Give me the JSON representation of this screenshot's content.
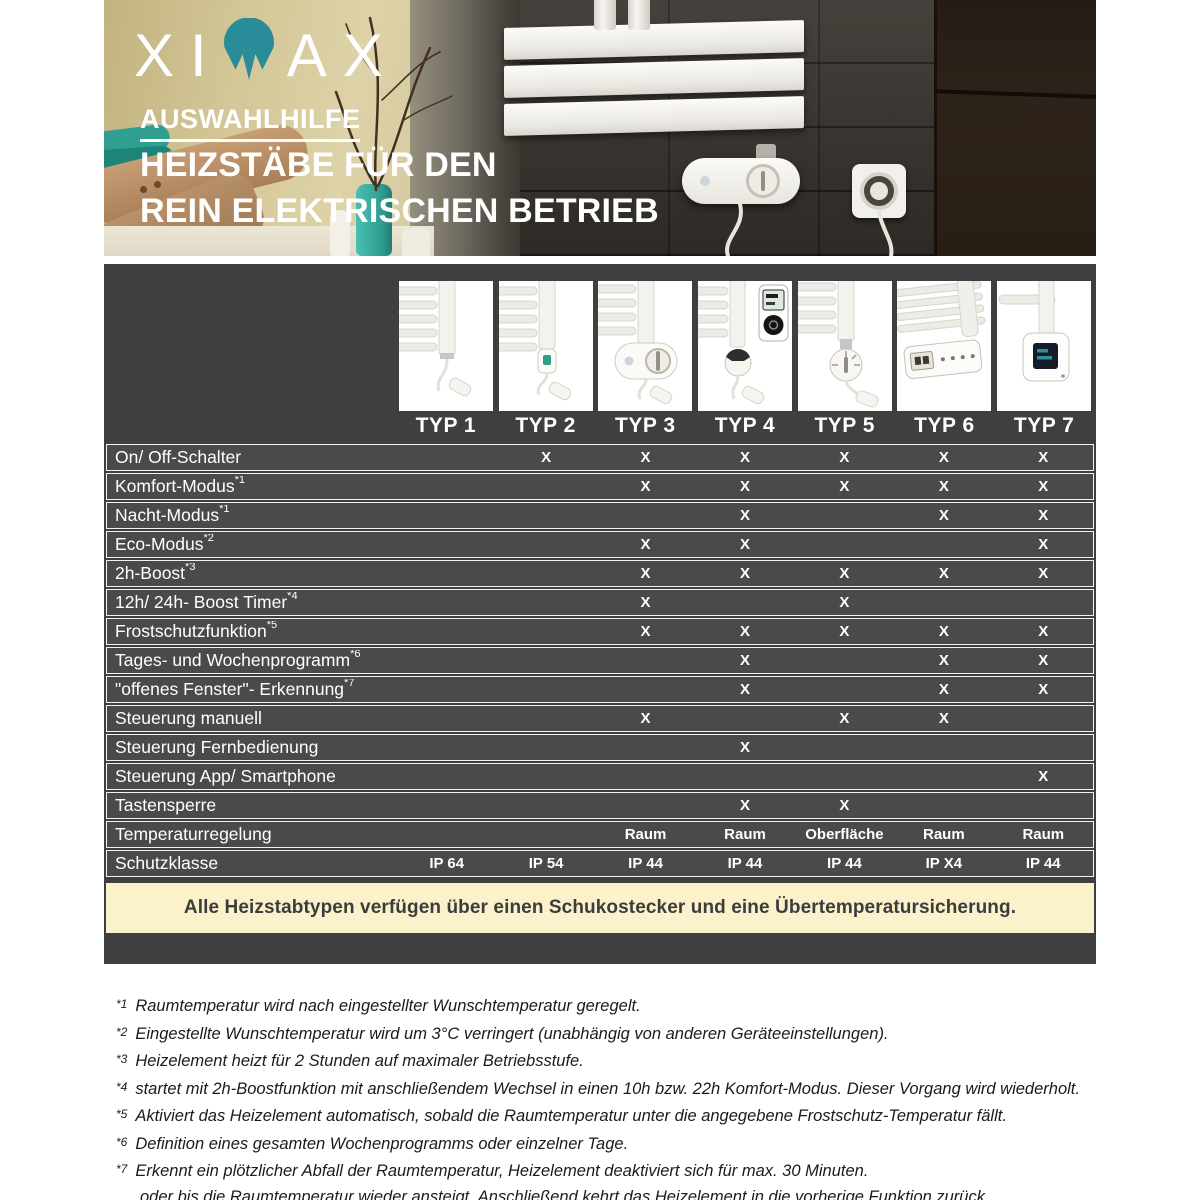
{
  "hero": {
    "logo_left": "XI",
    "logo_right": "AX",
    "eyebrow": "AUSWAHLHILFE",
    "title_line1": "HEIZSTÄBE FÜR DEN",
    "title_line2": "REIN ELEKTRISCHEN BETRIEB"
  },
  "colors": {
    "brand_teal": "#2a8c99",
    "panel_bg": "#3f3f3f",
    "row_bg": "#4a4a4a",
    "banner_bg": "#fbf2cb",
    "check_color": "#ffffff"
  },
  "table": {
    "columns": [
      "TYP 1",
      "TYP 2",
      "TYP 3",
      "TYP 4",
      "TYP 5",
      "TYP 6",
      "TYP 7"
    ],
    "rows": [
      {
        "label": "On/ Off-Schalter",
        "sup": "",
        "values": [
          "",
          "X",
          "X",
          "X",
          "X",
          "X",
          "X"
        ]
      },
      {
        "label": "Komfort-Modus",
        "sup": "*1",
        "values": [
          "",
          "",
          "X",
          "X",
          "X",
          "X",
          "X"
        ]
      },
      {
        "label": "Nacht-Modus",
        "sup": "*1",
        "values": [
          "",
          "",
          "",
          "X",
          "",
          "X",
          "X"
        ]
      },
      {
        "label": "Eco-Modus",
        "sup": "*2",
        "values": [
          "",
          "",
          "X",
          "X",
          "",
          "",
          "X"
        ]
      },
      {
        "label": "2h-Boost",
        "sup": "*3",
        "values": [
          "",
          "",
          "X",
          "X",
          "X",
          "X",
          "X"
        ]
      },
      {
        "label": "12h/ 24h- Boost Timer",
        "sup": "*4",
        "values": [
          "",
          "",
          "X",
          "",
          "X",
          "",
          ""
        ]
      },
      {
        "label": "Frostschutzfunktion",
        "sup": "*5",
        "values": [
          "",
          "",
          "X",
          "X",
          "X",
          "X",
          "X"
        ]
      },
      {
        "label": "Tages- und Wochenprogramm",
        "sup": "*6",
        "values": [
          "",
          "",
          "",
          "X",
          "",
          "X",
          "X"
        ]
      },
      {
        "label": "\"offenes Fenster\"- Erkennung",
        "sup": "*7",
        "values": [
          "",
          "",
          "",
          "X",
          "",
          "X",
          "X"
        ]
      },
      {
        "label": "Steuerung manuell",
        "sup": "",
        "values": [
          "",
          "",
          "X",
          "",
          "X",
          "X",
          ""
        ]
      },
      {
        "label": "Steuerung Fernbedienung",
        "sup": "",
        "values": [
          "",
          "",
          "",
          "X",
          "",
          "",
          ""
        ]
      },
      {
        "label": "Steuerung App/ Smartphone",
        "sup": "",
        "values": [
          "",
          "",
          "",
          "",
          "",
          "",
          "X"
        ]
      },
      {
        "label": "Tastensperre",
        "sup": "",
        "values": [
          "",
          "",
          "",
          "X",
          "X",
          "",
          ""
        ]
      },
      {
        "label": "Temperaturregelung",
        "sup": "",
        "values": [
          "",
          "",
          "Raum",
          "Raum",
          "Oberfläche",
          "Raum",
          "Raum"
        ]
      },
      {
        "label": "Schutzklasse",
        "sup": "",
        "values": [
          "IP 64",
          "IP 54",
          "IP 44",
          "IP 44",
          "IP 44",
          "IP X4",
          "IP 44"
        ]
      }
    ],
    "banner": "Alle Heizstabtypen verfügen über einen Schukostecker und eine Übertemperatursicherung."
  },
  "footnotes": [
    {
      "marker": "*1",
      "lines": [
        "Raumtemperatur wird nach eingestellter Wunschtemperatur geregelt."
      ]
    },
    {
      "marker": "*2",
      "lines": [
        "Eingestellte Wunschtemperatur wird um 3°C verringert (unabhängig von anderen Geräteeinstellungen)."
      ]
    },
    {
      "marker": "*3",
      "lines": [
        "Heizelement heizt für 2 Stunden auf maximaler Betriebsstufe."
      ]
    },
    {
      "marker": "*4",
      "lines": [
        "startet mit 2h-Boostfunktion mit anschließendem Wechsel in einen 10h bzw. 22h Komfort-Modus. Dieser Vorgang wird wiederholt."
      ]
    },
    {
      "marker": "*5",
      "lines": [
        "Aktiviert das Heizelement automatisch, sobald die Raumtemperatur unter die angegebene Frostschutz-Temperatur fällt."
      ]
    },
    {
      "marker": "*6",
      "lines": [
        "Definition eines gesamten Wochenprogramms oder einzelner Tage."
      ]
    },
    {
      "marker": "*7",
      "lines": [
        "Erkennt ein plötzlicher Abfall der Raumtemperatur, Heizelement deaktiviert sich für max. 30 Minuten.",
        "oder bis die Raumtemperatur wieder ansteigt. Anschließend kehrt das Heizelement in die vorherige Funktion zurück."
      ]
    }
  ]
}
